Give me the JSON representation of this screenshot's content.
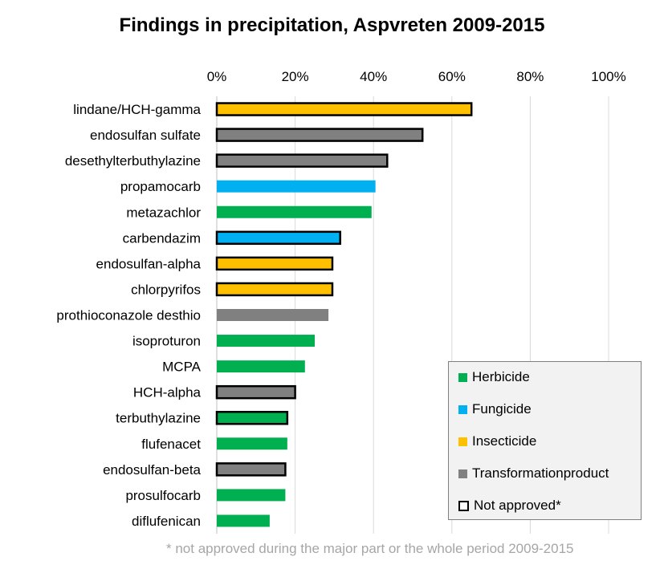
{
  "chart_data": {
    "type": "bar",
    "orientation": "horizontal",
    "title": "Findings in precipitation, Aspvreten 2009-2015",
    "xlabel": "",
    "ylabel": "",
    "xlim": [
      0,
      100
    ],
    "x_ticks": [
      "0%",
      "20%",
      "40%",
      "60%",
      "80%",
      "100%"
    ],
    "x_axis_position": "top",
    "grid": true,
    "legend_position": "bottom-right",
    "categories": [
      "lindane/HCH-gamma",
      "endosulfan sulfate",
      "desethylterbuthylazine",
      "propamocarb",
      "metazachlor",
      "carbendazim",
      "endosulfan-alpha",
      "chlorpyrifos",
      "prothioconazole desthio",
      "isoproturon",
      "MCPA",
      "HCH-alpha",
      "terbuthylazine",
      "flufenacet",
      "endosulfan-beta",
      "prosulfocarb",
      "diflufenican"
    ],
    "values": [
      65,
      52.5,
      43.5,
      40.5,
      39.5,
      31.5,
      29.5,
      29.5,
      28.5,
      25,
      22.5,
      20,
      18,
      18,
      17.5,
      17.5,
      13.5
    ],
    "groups": [
      "Insecticide",
      "Transformationproduct",
      "Transformationproduct",
      "Fungicide",
      "Herbicide",
      "Fungicide",
      "Insecticide",
      "Insecticide",
      "Transformationproduct",
      "Herbicide",
      "Herbicide",
      "Transformationproduct",
      "Herbicide",
      "Herbicide",
      "Transformationproduct",
      "Herbicide",
      "Herbicide"
    ],
    "not_approved": [
      true,
      true,
      true,
      false,
      false,
      true,
      true,
      true,
      false,
      false,
      false,
      true,
      true,
      false,
      true,
      false,
      false
    ],
    "colors": {
      "Herbicide": "#00b050",
      "Fungicide": "#00b0f0",
      "Insecticide": "#ffc000",
      "Transformationproduct": "#808080",
      "grid": "#d9d9d9"
    },
    "legend": [
      {
        "label": "Herbicide",
        "key": "Herbicide"
      },
      {
        "label": "Fungicide",
        "key": "Fungicide"
      },
      {
        "label": "Insecticide",
        "key": "Insecticide"
      },
      {
        "label": "Transformationproduct",
        "key": "Transformationproduct"
      },
      {
        "label": "Not approved*",
        "key": "not_approved"
      }
    ],
    "footnote": "* not approved during the major part or the whole period 2009-2015"
  }
}
